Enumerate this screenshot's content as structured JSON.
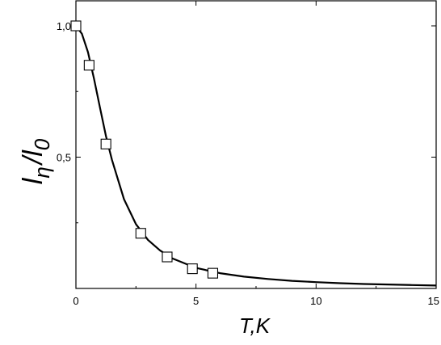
{
  "chart_data": {
    "type": "scatter",
    "title": "",
    "xlabel": "T,K",
    "ylabel_main": "l",
    "ylabel_sub": "η",
    "ylabel_div": "/",
    "ylabel_main2": "l",
    "ylabel_sub2": "0",
    "xlim": [
      0,
      15
    ],
    "ylim": [
      0,
      1.0
    ],
    "x_ticks": [
      {
        "value": 0,
        "label": "0"
      },
      {
        "value": 5,
        "label": "5"
      },
      {
        "value": 10,
        "label": "10"
      },
      {
        "value": 15,
        "label": "15"
      }
    ],
    "y_ticks": [
      {
        "value": 0.5,
        "label": "0,5"
      },
      {
        "value": 1.0,
        "label": "1,0"
      }
    ],
    "grid": false,
    "legend": "none",
    "series": [
      {
        "kind": "markers",
        "marker": "open-square",
        "points": [
          {
            "x": 0.0,
            "y": 1.0
          },
          {
            "x": 0.55,
            "y": 0.85
          },
          {
            "x": 1.25,
            "y": 0.55
          },
          {
            "x": 2.7,
            "y": 0.21
          },
          {
            "x": 3.8,
            "y": 0.12
          },
          {
            "x": 4.85,
            "y": 0.075
          },
          {
            "x": 5.7,
            "y": 0.058
          }
        ]
      },
      {
        "kind": "line",
        "points": [
          {
            "x": 0.0,
            "y": 1.0
          },
          {
            "x": 0.25,
            "y": 0.97
          },
          {
            "x": 0.5,
            "y": 0.9
          },
          {
            "x": 0.75,
            "y": 0.8
          },
          {
            "x": 1.0,
            "y": 0.69
          },
          {
            "x": 1.25,
            "y": 0.58
          },
          {
            "x": 1.5,
            "y": 0.49
          },
          {
            "x": 2.0,
            "y": 0.34
          },
          {
            "x": 2.5,
            "y": 0.245
          },
          {
            "x": 3.0,
            "y": 0.185
          },
          {
            "x": 3.5,
            "y": 0.145
          },
          {
            "x": 4.0,
            "y": 0.115
          },
          {
            "x": 5.0,
            "y": 0.078
          },
          {
            "x": 6.0,
            "y": 0.058
          },
          {
            "x": 7.0,
            "y": 0.045
          },
          {
            "x": 8.0,
            "y": 0.036
          },
          {
            "x": 9.0,
            "y": 0.029
          },
          {
            "x": 10.0,
            "y": 0.024
          },
          {
            "x": 11.0,
            "y": 0.02
          },
          {
            "x": 12.0,
            "y": 0.017
          },
          {
            "x": 13.0,
            "y": 0.015
          },
          {
            "x": 14.0,
            "y": 0.013
          },
          {
            "x": 15.0,
            "y": 0.011
          }
        ]
      }
    ]
  },
  "colors": {
    "line": "#000000",
    "marker_fill": "#ffffff",
    "marker_stroke": "#000000",
    "axis": "#000000"
  }
}
